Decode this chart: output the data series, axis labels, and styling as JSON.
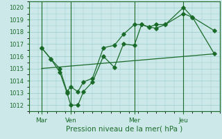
{
  "xlabel": "Pression niveau de la mer( hPa )",
  "background_color": "#cce8e8",
  "grid_color": "#99cccc",
  "line_color": "#1a6b2a",
  "ylim": [
    1011.5,
    1020.5
  ],
  "yticks": [
    1012,
    1013,
    1014,
    1015,
    1016,
    1017,
    1018,
    1019,
    1020
  ],
  "xlim": [
    0,
    10.5
  ],
  "day_positions": [
    0.7,
    2.3,
    5.8,
    8.5
  ],
  "day_labels": [
    "Mar",
    "Ven",
    "Mer",
    "Jeu"
  ],
  "vline_positions": [
    0.7,
    2.3,
    5.8,
    8.5
  ],
  "series1_x": [
    0.7,
    1.2,
    1.7,
    2.1,
    2.3,
    2.7,
    3.0,
    3.5,
    4.1,
    4.7,
    5.2,
    5.8,
    6.2,
    6.6,
    7.0,
    7.5,
    8.5,
    9.0,
    10.2
  ],
  "series1_y": [
    1016.7,
    1015.8,
    1014.7,
    1013.0,
    1012.0,
    1012.0,
    1013.1,
    1013.9,
    1016.0,
    1015.1,
    1017.0,
    1016.9,
    1018.6,
    1018.4,
    1018.3,
    1018.6,
    1019.5,
    1019.2,
    1016.2
  ],
  "series2_x": [
    0.7,
    10.2
  ],
  "series2_y": [
    1015.0,
    1016.2
  ],
  "series3_x": [
    0.7,
    1.2,
    1.7,
    2.1,
    2.3,
    2.7,
    3.0,
    3.5,
    4.1,
    4.7,
    5.2,
    5.8,
    6.2,
    6.6,
    7.0,
    7.5,
    8.5,
    9.0,
    10.2
  ],
  "series3_y": [
    1016.7,
    1015.8,
    1015.0,
    1013.1,
    1013.5,
    1013.1,
    1013.9,
    1014.2,
    1016.7,
    1016.9,
    1017.8,
    1018.6,
    1018.6,
    1018.4,
    1018.6,
    1018.6,
    1020.0,
    1019.2,
    1018.1
  ]
}
